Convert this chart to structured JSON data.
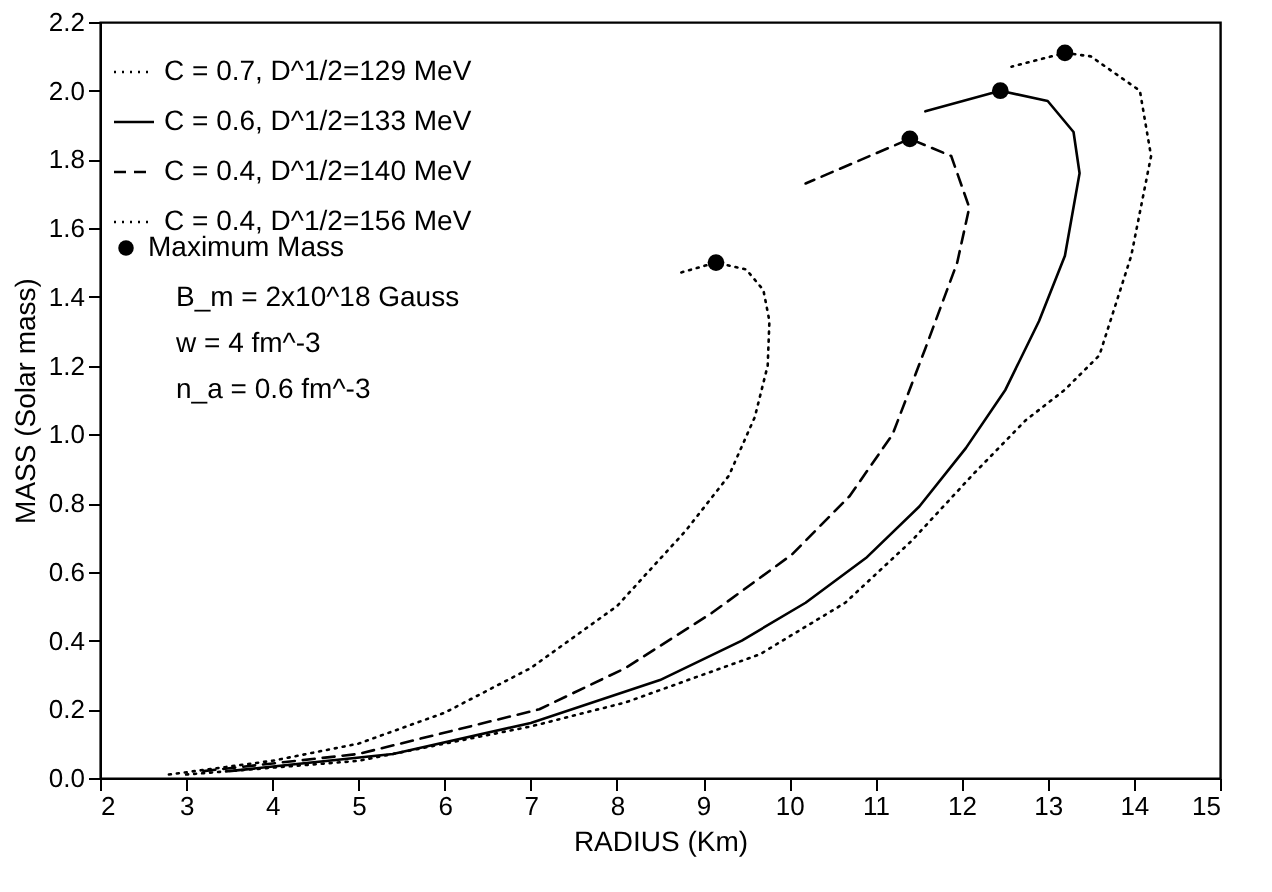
{
  "chart_data": {
    "type": "line",
    "xlabel": "RADIUS (Km)",
    "ylabel": "MASS (Solar mass)",
    "xlim": [
      2,
      15
    ],
    "xticks": [
      2,
      3,
      4,
      5,
      6,
      7,
      8,
      9,
      10,
      11,
      12,
      13,
      14,
      15
    ],
    "ylim": [
      0,
      2.2
    ],
    "yticks": [
      {
        "value": 0,
        "label": "0.0"
      },
      {
        "value": 0.2,
        "label": "0.2"
      },
      {
        "value": 0.4,
        "label": "0.4"
      },
      {
        "value": 0.6,
        "label": "0.6"
      },
      {
        "value": 0.8,
        "label": "0.8"
      },
      {
        "value": 1.0,
        "label": "1.0"
      },
      {
        "value": 1.2,
        "label": "1.2"
      },
      {
        "value": 1.4,
        "label": "1.4"
      },
      {
        "value": 1.6,
        "label": "1.6"
      },
      {
        "value": 1.8,
        "label": "1.8"
      },
      {
        "value": 2.0,
        "label": "2.0"
      },
      {
        "value": 2.2,
        "label": "2.2"
      }
    ],
    "grid": false,
    "legend": "top left",
    "series": [
      {
        "name": "C = 0.7, D^1/2=129 MeV",
        "type": "line",
        "color": "#000000",
        "line_style": "dotted",
        "x": [
          2.8,
          4,
          5,
          6,
          7,
          8,
          8.8,
          9.3,
          9.6,
          9.75,
          9.77,
          9.7,
          9.5,
          9.15,
          8.73
        ],
        "values": [
          0.01,
          0.05,
          0.1,
          0.19,
          0.32,
          0.5,
          0.72,
          0.88,
          1.05,
          1.2,
          1.33,
          1.42,
          1.48,
          1.5,
          1.47
        ]
      },
      {
        "name": "C = 0.6, D^1/2=133 MeV",
        "type": "line",
        "color": "#000000",
        "line_style": "solid",
        "x": [
          3.5,
          5.4,
          7,
          8.5,
          9.45,
          10.19,
          10.89,
          11.51,
          12.05,
          12.51,
          12.9,
          13.2,
          13.37,
          13.3,
          13.0,
          12.45,
          11.58
        ],
        "values": [
          0.02,
          0.07,
          0.16,
          0.285,
          0.4,
          0.51,
          0.64,
          0.79,
          0.96,
          1.13,
          1.33,
          1.52,
          1.76,
          1.88,
          1.97,
          2.0,
          1.94
        ]
      },
      {
        "name": "C = 0.4, D^1/2=140 MeV",
        "type": "line",
        "color": "#000000",
        "line_style": "dashed",
        "x": [
          3.2,
          5,
          7.1,
          8.1,
          9.1,
          10.03,
          10.7,
          11.2,
          11.58,
          11.95,
          12.09,
          11.88,
          11.4,
          10.19
        ],
        "values": [
          0.02,
          0.07,
          0.2,
          0.32,
          0.48,
          0.65,
          0.82,
          1.0,
          1.25,
          1.5,
          1.66,
          1.81,
          1.86,
          1.73
        ]
      },
      {
        "name": "C = 0.4, D^1/2=156 MeV",
        "type": "line",
        "color": "#000000",
        "line_style": "dotted",
        "x": [
          3,
          5,
          7,
          8.1,
          9.66,
          10.65,
          11.42,
          12.12,
          12.74,
          13.2,
          13.6,
          13.97,
          14.2,
          14.07,
          13.5,
          13.2,
          12.58
        ],
        "values": [
          0.01,
          0.05,
          0.15,
          0.22,
          0.36,
          0.51,
          0.69,
          0.88,
          1.04,
          1.13,
          1.23,
          1.52,
          1.81,
          2.0,
          2.1,
          2.11,
          2.07
        ]
      },
      {
        "name": "Maximum Mass",
        "type": "scatter",
        "color": "#000000",
        "marker": "circle",
        "x": [
          9.15,
          11.4,
          12.45,
          13.2
        ],
        "values": [
          1.5,
          1.86,
          2.0,
          2.11
        ]
      }
    ],
    "annotations": [
      "B_m = 2x10^18 Gauss",
      "w = 4 fm^-3",
      "n_a = 0.6 fm^-3"
    ]
  }
}
